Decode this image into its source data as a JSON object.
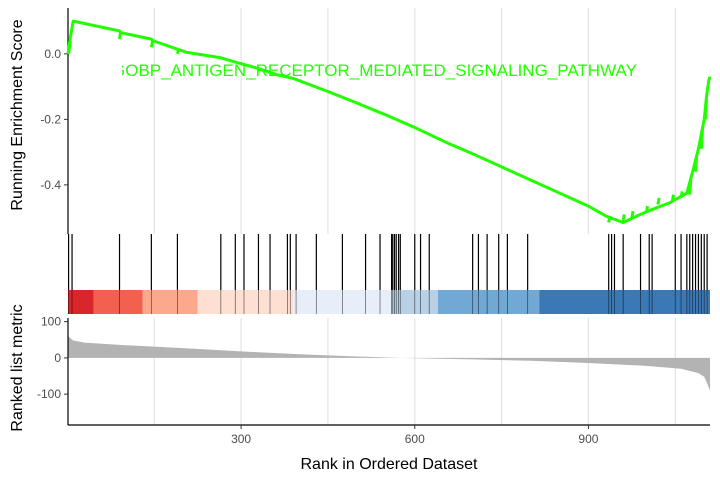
{
  "chart_data": [
    {
      "type": "line",
      "panel": "running-enrichment-score",
      "ylabel": "Running Enrichment Score",
      "annotation": "GOBP_ANTIGEN_RECEPTOR_MEDIATED_SIGNALING_PATHWAY",
      "series_color": "#22FF00",
      "xlim": [
        1,
        1110
      ],
      "ylim": [
        -0.55,
        0.14
      ],
      "yticks": [
        0.0,
        -0.2,
        -0.4
      ],
      "ytick_labels": [
        "0.0",
        "-0.2",
        "-0.4"
      ],
      "grid_x": [
        150,
        300,
        450,
        600,
        750,
        900,
        1050
      ],
      "points": [
        [
          1,
          0.0
        ],
        [
          5,
          0.05
        ],
        [
          10,
          0.1
        ],
        [
          90,
          0.07
        ],
        [
          92,
          0.065
        ],
        [
          145,
          0.045
        ],
        [
          148,
          0.04
        ],
        [
          205,
          0.005
        ],
        [
          265,
          -0.012
        ],
        [
          290,
          -0.025
        ],
        [
          330,
          -0.045
        ],
        [
          365,
          -0.065
        ],
        [
          390,
          -0.075
        ],
        [
          450,
          -0.115
        ],
        [
          500,
          -0.15
        ],
        [
          555,
          -0.19
        ],
        [
          600,
          -0.225
        ],
        [
          660,
          -0.275
        ],
        [
          700,
          -0.305
        ],
        [
          750,
          -0.345
        ],
        [
          800,
          -0.385
        ],
        [
          850,
          -0.425
        ],
        [
          900,
          -0.465
        ],
        [
          930,
          -0.495
        ],
        [
          960,
          -0.515
        ],
        [
          990,
          -0.49
        ],
        [
          1010,
          -0.475
        ],
        [
          1040,
          -0.455
        ],
        [
          1070,
          -0.425
        ],
        [
          1080,
          -0.36
        ],
        [
          1090,
          -0.29
        ],
        [
          1100,
          -0.2
        ],
        [
          1104,
          -0.13
        ],
        [
          1108,
          -0.08
        ],
        [
          1110,
          -0.07
        ]
      ],
      "steps": [
        [
          [
            2,
            0.0
          ],
          [
            5,
            0.04
          ]
        ],
        [
          [
            90,
            0.045
          ],
          [
            92,
            0.07
          ]
        ],
        [
          [
            145,
            0.02
          ],
          [
            148,
            0.045
          ]
        ],
        [
          [
            190,
            0.0
          ],
          [
            192,
            0.015
          ]
        ],
        [
          [
            935,
            -0.515
          ],
          [
            937,
            -0.495
          ]
        ],
        [
          [
            960,
            -0.51
          ],
          [
            962,
            -0.49
          ]
        ],
        [
          [
            975,
            -0.5
          ],
          [
            977,
            -0.48
          ]
        ],
        [
          [
            1000,
            -0.485
          ],
          [
            1002,
            -0.465
          ]
        ],
        [
          [
            1020,
            -0.46
          ],
          [
            1022,
            -0.44
          ]
        ],
        [
          [
            1045,
            -0.45
          ],
          [
            1047,
            -0.43
          ]
        ],
        [
          [
            1060,
            -0.44
          ],
          [
            1062,
            -0.42
          ]
        ],
        [
          [
            1075,
            -0.43
          ],
          [
            1077,
            -0.38
          ]
        ],
        [
          [
            1085,
            -0.36
          ],
          [
            1087,
            -0.31
          ]
        ],
        [
          [
            1095,
            -0.29
          ],
          [
            1097,
            -0.23
          ]
        ],
        [
          [
            1102,
            -0.2
          ],
          [
            1104,
            -0.14
          ]
        ]
      ]
    },
    {
      "type": "rug",
      "panel": "gene-hits",
      "xlim": [
        1,
        1110
      ],
      "hits": [
        2,
        8,
        90,
        145,
        190,
        265,
        290,
        305,
        330,
        350,
        380,
        385,
        395,
        430,
        475,
        515,
        540,
        560,
        562,
        565,
        568,
        572,
        575,
        600,
        610,
        625,
        700,
        710,
        725,
        745,
        760,
        795,
        935,
        940,
        945,
        960,
        990,
        1005,
        1010,
        1050,
        1060,
        1070,
        1075,
        1080,
        1085,
        1090,
        1095,
        1100,
        1105
      ]
    },
    {
      "type": "heatmap",
      "panel": "rank-color-bar",
      "xlim": [
        1,
        1110
      ],
      "segments": [
        {
          "from": 1,
          "to": 45,
          "color": "#D9262A"
        },
        {
          "from": 45,
          "to": 130,
          "color": "#F26150"
        },
        {
          "from": 130,
          "to": 225,
          "color": "#FCA88C"
        },
        {
          "from": 225,
          "to": 390,
          "color": "#FEE0D2"
        },
        {
          "from": 390,
          "to": 560,
          "color": "#E7EEFA"
        },
        {
          "from": 560,
          "to": 640,
          "color": "#B8D1E6"
        },
        {
          "from": 640,
          "to": 815,
          "color": "#6FA9D4"
        },
        {
          "from": 815,
          "to": 1110,
          "color": "#3A78B6"
        }
      ]
    },
    {
      "type": "area",
      "panel": "ranked-list-metric",
      "ylabel": "Ranked list metric",
      "xlabel": "Rank in Ordered Dataset",
      "fill_color": "#B3B3B3",
      "xlim": [
        1,
        1110
      ],
      "ylim": [
        -185,
        110
      ],
      "xticks": [
        300,
        600,
        900
      ],
      "xtick_labels": [
        "300",
        "600",
        "900"
      ],
      "yticks": [
        100,
        0,
        -100
      ],
      "ytick_labels": [
        "100",
        "0",
        "-100"
      ],
      "grid_x": [
        150,
        300,
        450,
        600,
        750,
        900,
        1050
      ],
      "points": [
        [
          1,
          60
        ],
        [
          10,
          48
        ],
        [
          30,
          42
        ],
        [
          100,
          35
        ],
        [
          200,
          27
        ],
        [
          300,
          18
        ],
        [
          400,
          10
        ],
        [
          500,
          4
        ],
        [
          600,
          -1
        ],
        [
          700,
          -4
        ],
        [
          800,
          -8
        ],
        [
          900,
          -14
        ],
        [
          1000,
          -22
        ],
        [
          1060,
          -30
        ],
        [
          1090,
          -42
        ],
        [
          1100,
          -52
        ],
        [
          1105,
          -70
        ],
        [
          1110,
          -90
        ]
      ]
    }
  ]
}
